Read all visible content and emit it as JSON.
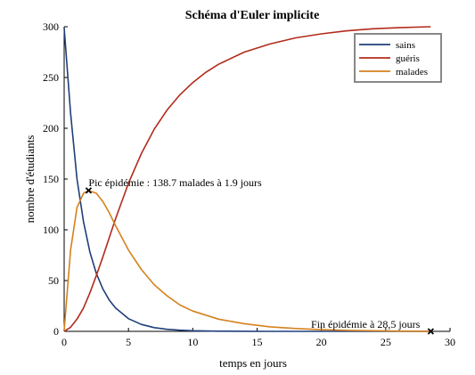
{
  "chart_data": {
    "type": "line",
    "title": "Schéma d'Euler implicite",
    "xlabel": "temps en jours",
    "ylabel": "nombre d'étudiants",
    "xlim": [
      0,
      30
    ],
    "ylim": [
      0,
      300
    ],
    "xticks": [
      0,
      5,
      10,
      15,
      20,
      25,
      30
    ],
    "yticks": [
      0,
      50,
      100,
      150,
      200,
      250,
      300
    ],
    "grid": false,
    "legend_position": "top-right",
    "series": [
      {
        "name": "sains",
        "color": "#1f3f7a",
        "x": [
          0,
          0.5,
          1,
          1.5,
          2,
          2.5,
          3,
          3.5,
          4,
          5,
          6,
          7,
          8,
          9,
          10,
          12,
          14,
          16,
          18,
          20,
          22,
          24,
          26,
          28.5
        ],
        "y": [
          299,
          215,
          150,
          108,
          78,
          57,
          42,
          31,
          23,
          12.5,
          6.8,
          3.7,
          2.0,
          1.1,
          0.6,
          0.2,
          0.1,
          0,
          0,
          0,
          0,
          0,
          0,
          0
        ]
      },
      {
        "name": "guéris",
        "color": "#b22b1c",
        "x": [
          0,
          0.5,
          1,
          1.5,
          2,
          2.5,
          3,
          3.5,
          4,
          5,
          6,
          7,
          8,
          9,
          10,
          11,
          12,
          14,
          16,
          18,
          20,
          22,
          24,
          26,
          28.5
        ],
        "y": [
          0,
          4,
          12,
          23,
          38,
          55,
          73,
          92,
          111,
          146,
          175,
          199,
          218,
          233,
          245,
          255,
          263,
          275,
          283,
          289,
          293,
          296,
          298,
          299,
          300
        ]
      },
      {
        "name": "malades",
        "color": "#d4811e",
        "x": [
          0,
          0.5,
          1,
          1.5,
          1.9,
          2.5,
          3,
          3.5,
          4,
          5,
          6,
          7,
          8,
          9,
          10,
          12,
          14,
          16,
          18,
          20,
          22,
          24,
          26,
          28.5
        ],
        "y": [
          1,
          80,
          122,
          136,
          138.7,
          136,
          128,
          117,
          104,
          80,
          61,
          46,
          35,
          26,
          20,
          12,
          7.5,
          4.5,
          2.8,
          1.7,
          1.0,
          0.6,
          0.3,
          0.1
        ]
      }
    ],
    "annotations": [
      {
        "text": "Pic épidémie : 138.7 malades à 1.9 jours",
        "x": 1.9,
        "y": 138.7
      },
      {
        "text": "Fin épidémie à 28,5 jours",
        "x": 28.5,
        "y": 0
      }
    ]
  }
}
